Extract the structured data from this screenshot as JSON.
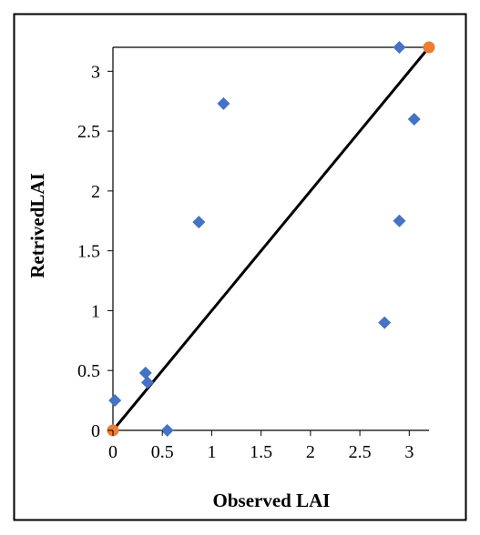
{
  "chart_data": {
    "type": "scatter",
    "title": "",
    "xlabel": "Observed LAI",
    "ylabel": "RetrivedLAI",
    "xlim": [
      0,
      3.2
    ],
    "ylim": [
      0,
      3.2
    ],
    "x_ticks": [
      "0",
      "0.5",
      "1",
      "1.5",
      "2",
      "2.5",
      "3"
    ],
    "y_ticks": [
      "0",
      "0.5",
      "1",
      "1.5",
      "2",
      "2.5",
      "3"
    ],
    "grid": false,
    "legend": "none",
    "series": [
      {
        "marker": "diamond",
        "color": "#4472C4",
        "points": [
          {
            "x": 0.02,
            "y": 0.25
          },
          {
            "x": 0.33,
            "y": 0.48
          },
          {
            "x": 0.35,
            "y": 0.4
          },
          {
            "x": 0.55,
            "y": 0.0
          },
          {
            "x": 0.87,
            "y": 1.74
          },
          {
            "x": 1.12,
            "y": 2.73
          },
          {
            "x": 2.75,
            "y": 0.9
          },
          {
            "x": 2.9,
            "y": 1.75
          },
          {
            "x": 2.9,
            "y": 3.2
          },
          {
            "x": 3.05,
            "y": 2.6
          }
        ]
      },
      {
        "marker": "circle",
        "color": "#ED7D31",
        "line_color": "#000000",
        "points": [
          {
            "x": 0,
            "y": 0
          },
          {
            "x": 3.2,
            "y": 3.2
          }
        ]
      }
    ]
  }
}
